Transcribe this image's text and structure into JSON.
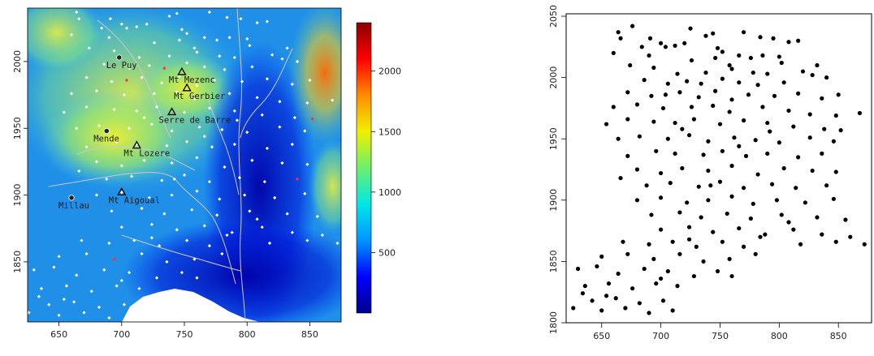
{
  "chart_data": [
    {
      "type": "heatmap",
      "xlim": [
        625,
        875
      ],
      "ylim": [
        1805,
        2040
      ],
      "x_ticks": [
        650,
        700,
        750,
        800,
        850
      ],
      "y_ticks": [
        1850,
        1900,
        1950,
        2000
      ],
      "colorbar": {
        "range": [
          0,
          2400
        ],
        "ticks": [
          500,
          1000,
          1500,
          2000
        ],
        "colors": [
          "#00008b",
          "#0000ff",
          "#0096ff",
          "#00e6e6",
          "#6cf06c",
          "#f0f000",
          "#ff8c00",
          "#ff0000",
          "#8b0000"
        ]
      },
      "places": [
        {
          "name": "Le Puy",
          "x": 698,
          "y": 2003,
          "marker": "dot"
        },
        {
          "name": "Mt Mezenc",
          "x": 748,
          "y": 1992,
          "marker": "triangle"
        },
        {
          "name": "Mt Gerbier",
          "x": 752,
          "y": 1980,
          "marker": "triangle"
        },
        {
          "name": "Serre de Barre",
          "x": 740,
          "y": 1962,
          "marker": "triangle"
        },
        {
          "name": "Mende",
          "x": 688,
          "y": 1948,
          "marker": "dot"
        },
        {
          "name": "Mt Lozere",
          "x": 712,
          "y": 1937,
          "marker": "triangle"
        },
        {
          "name": "Millau",
          "x": 660,
          "y": 1898,
          "marker": "dot"
        },
        {
          "name": "Mt Aigoual",
          "x": 700,
          "y": 1902,
          "marker": "triangle"
        }
      ],
      "stations_note_colors": {
        "station": "#ffffff",
        "highlight": "#ff3030"
      }
    },
    {
      "type": "scatter",
      "xlim": [
        620,
        878
      ],
      "ylim": [
        1800,
        2052
      ],
      "x_ticks": [
        650,
        700,
        750,
        800,
        850
      ],
      "y_ticks": [
        1800,
        1850,
        1900,
        1950,
        2000,
        2050
      ],
      "marker_color": "#000000",
      "points": [
        [
          664,
          2037
        ],
        [
          676,
          2042
        ],
        [
          666,
          2032
        ],
        [
          691,
          2032
        ],
        [
          700,
          2028
        ],
        [
          725,
          2040
        ],
        [
          744,
          2036
        ],
        [
          738,
          2034
        ],
        [
          770,
          2037
        ],
        [
          784,
          2033
        ],
        [
          795,
          2032
        ],
        [
          808,
          2029
        ],
        [
          816,
          2030
        ],
        [
          660,
          2020
        ],
        [
          684,
          2025
        ],
        [
          704,
          2025
        ],
        [
          712,
          2026
        ],
        [
          720,
          2028
        ],
        [
          748,
          2024
        ],
        [
          752,
          2021
        ],
        [
          766,
          2018
        ],
        [
          786,
          2018
        ],
        [
          800,
          2017
        ],
        [
          690,
          2018
        ],
        [
          726,
          2014
        ],
        [
          746,
          2016
        ],
        [
          776,
          2016
        ],
        [
          802,
          2012
        ],
        [
          832,
          2010
        ],
        [
          674,
          2010
        ],
        [
          694,
          2008
        ],
        [
          714,
          2003
        ],
        [
          738,
          2004
        ],
        [
          760,
          2007
        ],
        [
          778,
          2004
        ],
        [
          790,
          2003
        ],
        [
          820,
          2005
        ],
        [
          828,
          2002
        ],
        [
          840,
          2000
        ],
        [
          686,
          1998
        ],
        [
          706,
          1995
        ],
        [
          722,
          1997
        ],
        [
          734,
          1995
        ],
        [
          752,
          1999
        ],
        [
          766,
          1996
        ],
        [
          782,
          1994
        ],
        [
          804,
          1996
        ],
        [
          672,
          1988
        ],
        [
          692,
          1985
        ],
        [
          716,
          1988
        ],
        [
          732,
          1984
        ],
        [
          746,
          1989
        ],
        [
          760,
          1982
        ],
        [
          774,
          1986
        ],
        [
          796,
          1985
        ],
        [
          816,
          1987
        ],
        [
          836,
          1983
        ],
        [
          850,
          1986
        ],
        [
          660,
          1976
        ],
        [
          680,
          1978
        ],
        [
          702,
          1975
        ],
        [
          726,
          1976
        ],
        [
          744,
          1977
        ],
        [
          758,
          1972
        ],
        [
          786,
          1976
        ],
        [
          808,
          1973
        ],
        [
          826,
          1970
        ],
        [
          848,
          1969
        ],
        [
          868,
          1971
        ],
        [
          654,
          1962
        ],
        [
          672,
          1966
        ],
        [
          694,
          1964
        ],
        [
          712,
          1963
        ],
        [
          728,
          1966
        ],
        [
          750,
          1962
        ],
        [
          770,
          1965
        ],
        [
          790,
          1963
        ],
        [
          812,
          1960
        ],
        [
          838,
          1958
        ],
        [
          852,
          1957
        ],
        [
          664,
          1950
        ],
        [
          682,
          1952
        ],
        [
          706,
          1950
        ],
        [
          724,
          1953
        ],
        [
          740,
          1948
        ],
        [
          762,
          1951
        ],
        [
          780,
          1949
        ],
        [
          800,
          1947
        ],
        [
          826,
          1951
        ],
        [
          846,
          1948
        ],
        [
          672,
          1936
        ],
        [
          696,
          1940
        ],
        [
          712,
          1938
        ],
        [
          736,
          1937
        ],
        [
          752,
          1940
        ],
        [
          772,
          1936
        ],
        [
          790,
          1938
        ],
        [
          816,
          1935
        ],
        [
          836,
          1938
        ],
        [
          680,
          1925
        ],
        [
          700,
          1922
        ],
        [
          718,
          1926
        ],
        [
          740,
          1924
        ],
        [
          760,
          1928
        ],
        [
          782,
          1921
        ],
        [
          804,
          1926
        ],
        [
          828,
          1924
        ],
        [
          848,
          1923
        ],
        [
          666,
          1918
        ],
        [
          688,
          1912
        ],
        [
          708,
          1914
        ],
        [
          732,
          1911
        ],
        [
          750,
          1915
        ],
        [
          770,
          1910
        ],
        [
          794,
          1913
        ],
        [
          814,
          1910
        ],
        [
          840,
          1912
        ],
        [
          680,
          1900
        ],
        [
          700,
          1902
        ],
        [
          722,
          1898
        ],
        [
          740,
          1900
        ],
        [
          760,
          1903
        ],
        [
          778,
          1897
        ],
        [
          798,
          1900
        ],
        [
          822,
          1898
        ],
        [
          846,
          1901
        ],
        [
          692,
          1888
        ],
        [
          716,
          1890
        ],
        [
          734,
          1886
        ],
        [
          756,
          1889
        ],
        [
          776,
          1885
        ],
        [
          802,
          1888
        ],
        [
          832,
          1886
        ],
        [
          856,
          1884
        ],
        [
          700,
          1876
        ],
        [
          724,
          1878
        ],
        [
          744,
          1874
        ],
        [
          766,
          1877
        ],
        [
          788,
          1872
        ],
        [
          812,
          1876
        ],
        [
          836,
          1872
        ],
        [
          860,
          1870
        ],
        [
          668,
          1866
        ],
        [
          690,
          1864
        ],
        [
          710,
          1866
        ],
        [
          730,
          1862
        ],
        [
          752,
          1866
        ],
        [
          770,
          1862
        ],
        [
          818,
          1864
        ],
        [
          848,
          1866
        ],
        [
          872,
          1864
        ],
        [
          650,
          1854
        ],
        [
          672,
          1856
        ],
        [
          694,
          1852
        ],
        [
          716,
          1856
        ],
        [
          736,
          1850
        ],
        [
          758,
          1852
        ],
        [
          780,
          1856
        ],
        [
          630,
          1844
        ],
        [
          646,
          1846
        ],
        [
          664,
          1840
        ],
        [
          686,
          1844
        ],
        [
          706,
          1842
        ],
        [
          728,
          1838
        ],
        [
          748,
          1842
        ],
        [
          636,
          1830
        ],
        [
          656,
          1832
        ],
        [
          676,
          1828
        ],
        [
          696,
          1832
        ],
        [
          714,
          1830
        ],
        [
          642,
          1818
        ],
        [
          662,
          1820
        ],
        [
          682,
          1816
        ],
        [
          702,
          1818
        ],
        [
          626,
          1812
        ],
        [
          650,
          1810
        ],
        [
          670,
          1812
        ],
        [
          690,
          1808
        ],
        [
          710,
          1810
        ],
        [
          634,
          1824
        ],
        [
          654,
          1822
        ],
        [
          700,
          1836
        ],
        [
          724,
          1868
        ],
        [
          760,
          1838
        ],
        [
          784,
          1870
        ],
        [
          808,
          1882
        ],
        [
          742,
          1912
        ],
        [
          766,
          1944
        ],
        [
          792,
          1956
        ],
        [
          718,
          1958
        ],
        [
          704,
          1986
        ],
        [
          758,
          2010
        ]
      ]
    }
  ]
}
